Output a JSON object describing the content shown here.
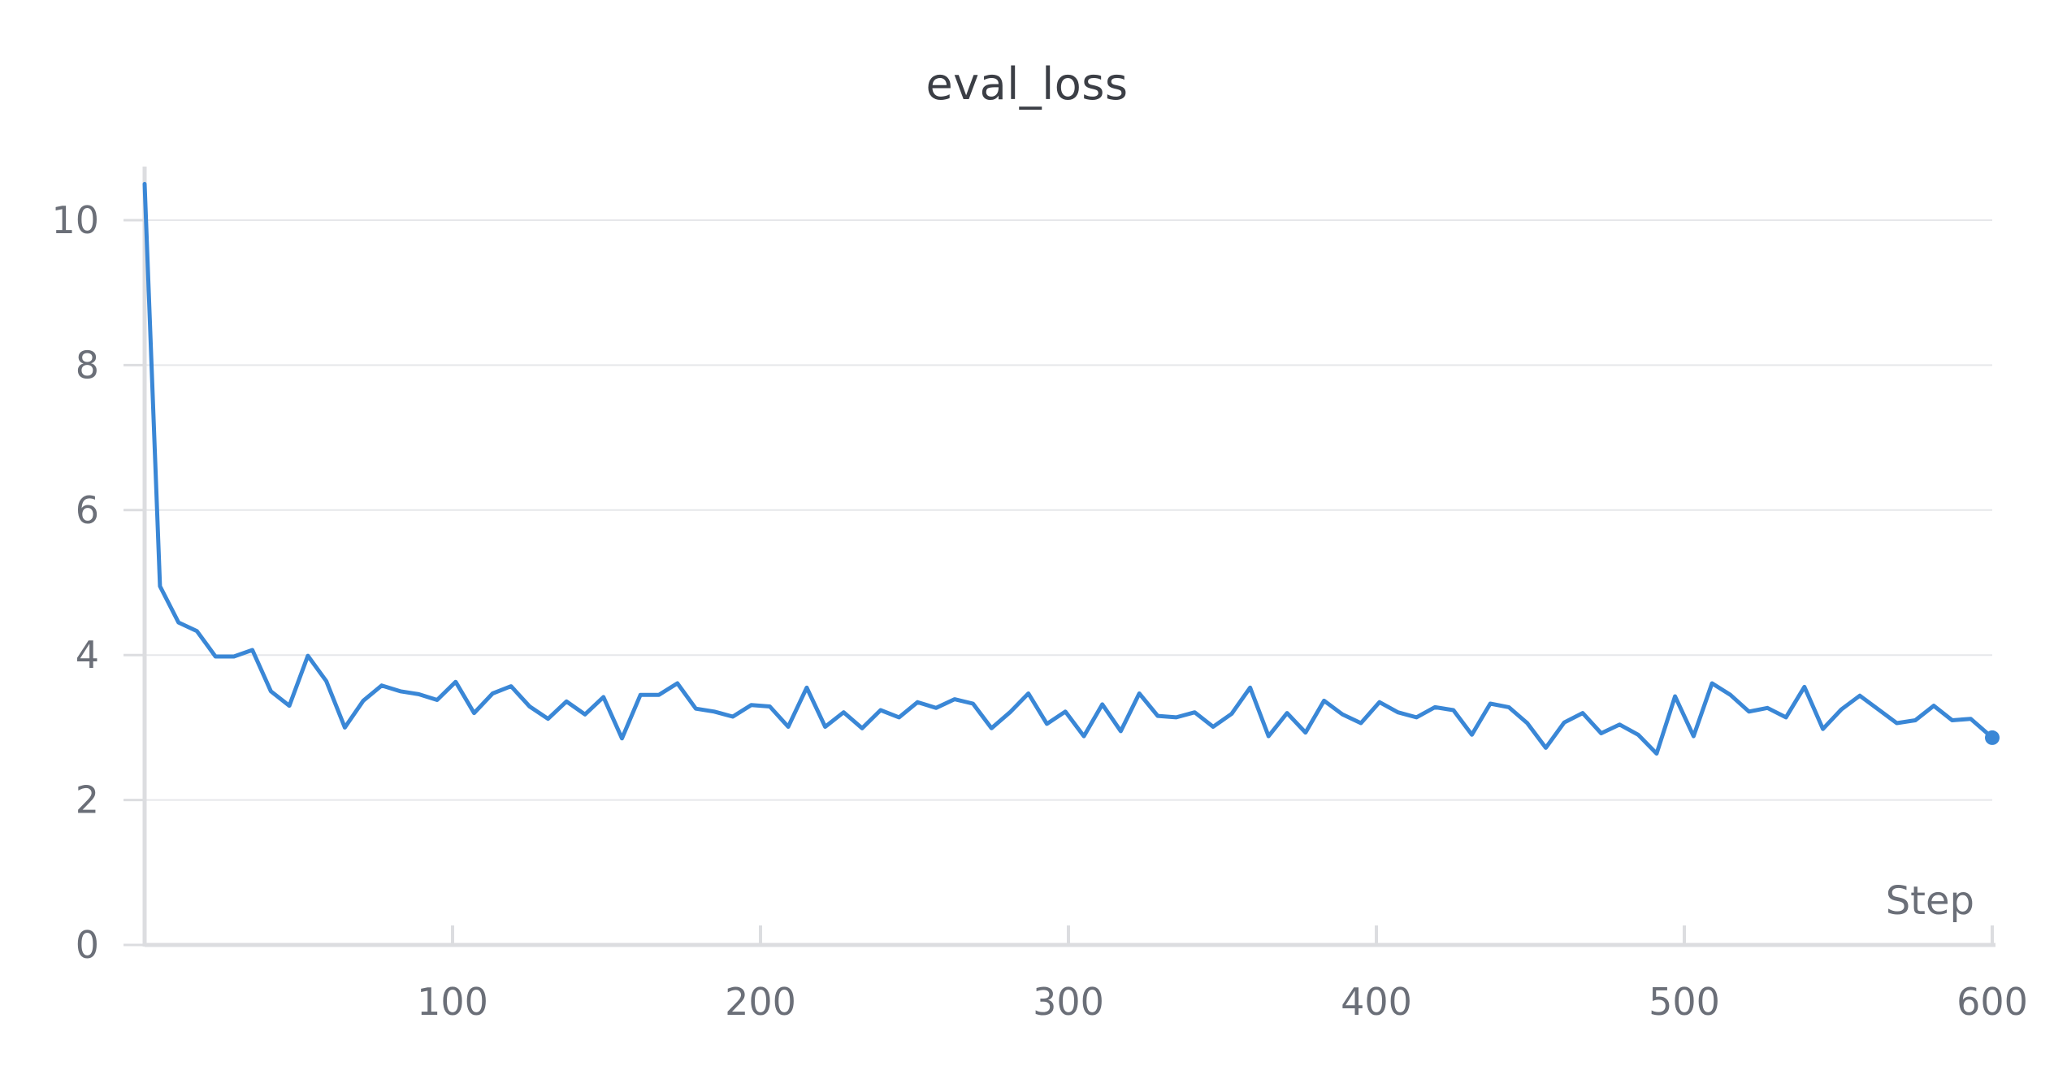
{
  "chart_data": {
    "type": "line",
    "title": "eval_loss",
    "xlabel": "Step",
    "ylabel": "",
    "xlim": [
      0,
      600
    ],
    "ylim": [
      0,
      10.8
    ],
    "grid": true,
    "x_ticks": [
      100,
      200,
      300,
      400,
      500,
      600
    ],
    "x_tick_labels": [
      "100",
      "200",
      "300",
      "400",
      "500",
      "600"
    ],
    "y_ticks": [
      0,
      2,
      4,
      6,
      8,
      10
    ],
    "y_tick_labels": [
      "0",
      "2",
      "4",
      "6",
      "8",
      "10"
    ],
    "colors": {
      "line": "#3a87d6",
      "grid": "#e6e7ea",
      "axis": "#dcdde0"
    },
    "series": [
      {
        "x": [
          0,
          5,
          11,
          17,
          23,
          29,
          35,
          41,
          47,
          53,
          59,
          65,
          71,
          77,
          83,
          89,
          95,
          101,
          107,
          113,
          119,
          125,
          131,
          137,
          143,
          149,
          155,
          161,
          167,
          173,
          179,
          185,
          191,
          197,
          203,
          209,
          215,
          221,
          227,
          233,
          239,
          245,
          251,
          257,
          263,
          269,
          275,
          281,
          287,
          293,
          299,
          305,
          311,
          317,
          323,
          329,
          335,
          341,
          347,
          353,
          359,
          365,
          371,
          377,
          383,
          389,
          395,
          401,
          407,
          413,
          419,
          425,
          431,
          437,
          443,
          449,
          455,
          461,
          467,
          473,
          479,
          485,
          491,
          497,
          503,
          509,
          515,
          521,
          527,
          533,
          539,
          545,
          551,
          557,
          563,
          569,
          575,
          581,
          587,
          593,
          600
        ],
        "y": [
          10.5,
          4.95,
          4.45,
          4.33,
          3.98,
          3.98,
          4.07,
          3.5,
          3.3,
          3.99,
          3.64,
          3.0,
          3.37,
          3.58,
          3.5,
          3.46,
          3.38,
          3.63,
          3.2,
          3.47,
          3.57,
          3.29,
          3.12,
          3.36,
          3.18,
          3.42,
          2.85,
          3.45,
          3.45,
          3.61,
          3.26,
          3.22,
          3.15,
          3.31,
          3.29,
          3.01,
          3.55,
          3.01,
          3.21,
          2.99,
          3.24,
          3.14,
          3.35,
          3.27,
          3.39,
          3.33,
          2.99,
          3.21,
          3.47,
          3.05,
          3.22,
          2.88,
          3.32,
          2.95,
          3.47,
          3.16,
          3.14,
          3.21,
          3.01,
          3.19,
          3.55,
          2.88,
          3.2,
          2.93,
          3.37,
          3.18,
          3.06,
          3.35,
          3.21,
          3.14,
          3.28,
          3.24,
          2.9,
          3.33,
          3.28,
          3.06,
          2.72,
          3.07,
          3.2,
          2.92,
          3.04,
          2.9,
          2.64,
          3.43,
          2.88,
          3.61,
          3.45,
          3.22,
          3.27,
          3.14,
          3.56,
          2.98,
          3.25,
          3.44,
          3.25,
          3.06,
          3.1,
          3.3,
          3.1,
          3.12,
          2.86
        ]
      }
    ]
  }
}
